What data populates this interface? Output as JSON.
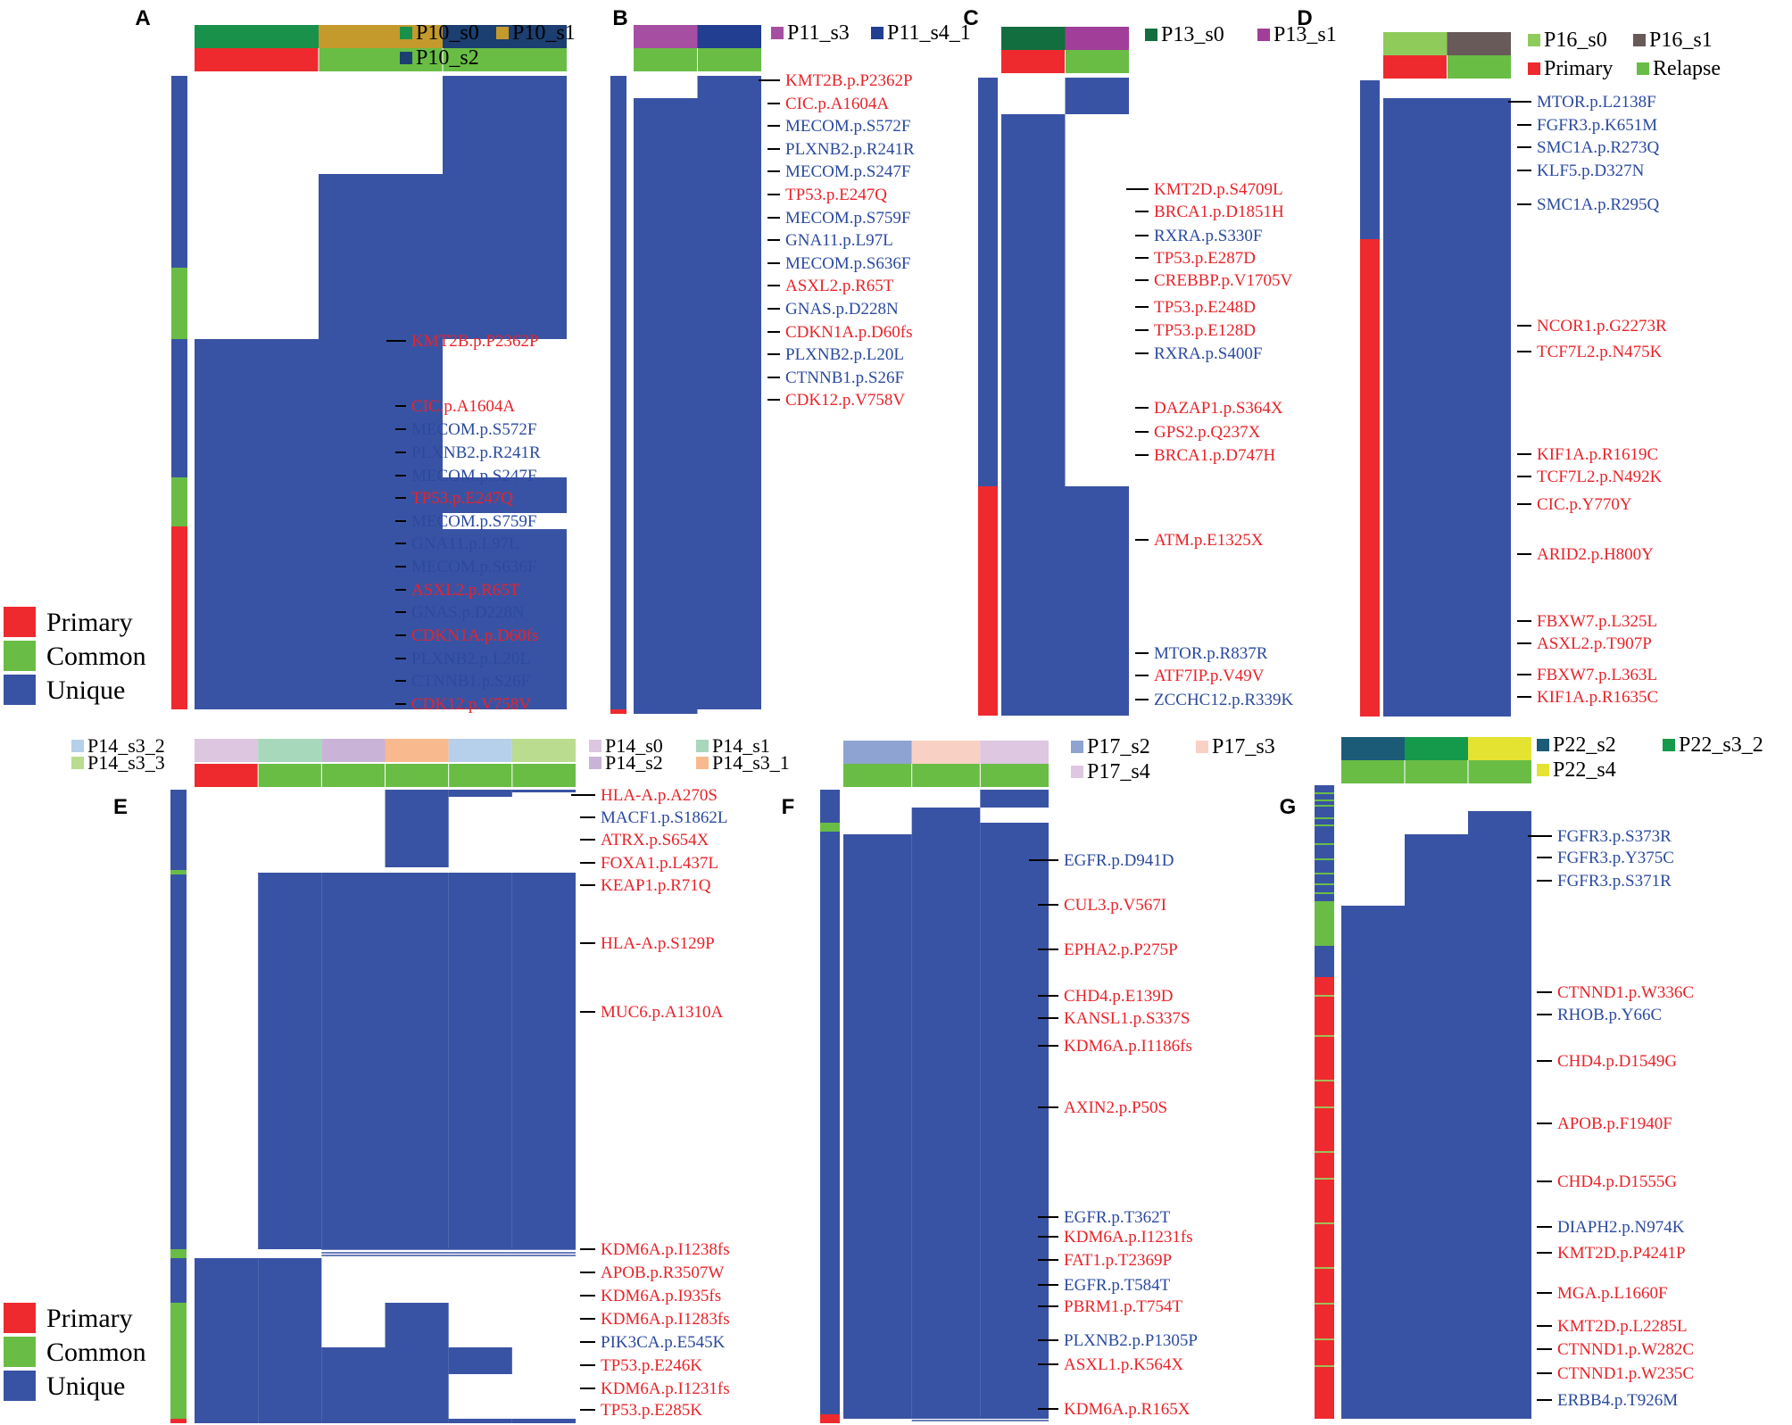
{
  "colors": {
    "unique": "#3953A4",
    "primary": "#EE2A2E",
    "common": "#69BD45",
    "gene_red": "#E8232A",
    "gene_blue": "#2B4A9E"
  },
  "legend": {
    "primary": "Primary",
    "common": "Common",
    "unique": "Unique"
  },
  "chart_data": [
    {
      "panel": "A",
      "type": "heatmap",
      "samples": [
        {
          "name": "P10_s0",
          "color": "#19914B"
        },
        {
          "name": "P10_s1",
          "color": "#C49A2C"
        },
        {
          "name": "P10_s2",
          "color": "#1B3F70"
        }
      ],
      "timepoint": [
        "primary",
        "common",
        "common"
      ],
      "mutations": [
        {
          "label": "KMT2B.p.P2362P",
          "class": "primary"
        },
        {
          "label": "CIC.p.A1604A",
          "class": "primary"
        },
        {
          "label": "MECOM.p.S572F",
          "class": "unique"
        },
        {
          "label": "PLXNB2.p.R241R",
          "class": "unique"
        },
        {
          "label": "MECOM.p.S247F",
          "class": "unique"
        },
        {
          "label": "TP53.p.E247Q",
          "class": "primary"
        },
        {
          "label": "MECOM.p.S759F",
          "class": "unique"
        },
        {
          "label": "GNA11.p.L97L",
          "class": "unique"
        },
        {
          "label": "MECOM.p.S636F",
          "class": "unique"
        },
        {
          "label": "ASXL2.p.R65T",
          "class": "primary"
        },
        {
          "label": "GNAS.p.D228N",
          "class": "unique"
        },
        {
          "label": "CDKN1A.p.D60fs",
          "class": "primary"
        },
        {
          "label": "PLXNB2.p.L20L",
          "class": "unique"
        },
        {
          "label": "CTNNB1.p.S26F",
          "class": "unique"
        },
        {
          "label": "CDK12.p.V758V",
          "class": "primary"
        }
      ]
    },
    {
      "panel": "B",
      "type": "heatmap",
      "samples": [
        {
          "name": "P11_s3",
          "color": "#A64EA2"
        },
        {
          "name": "P11_s4_1",
          "color": "#223E91"
        }
      ],
      "timepoint": [
        "common",
        "common"
      ],
      "mutations": [
        {
          "label": "KMT2B.p.P2362P",
          "class": "primary"
        },
        {
          "label": "CIC.p.A1604A",
          "class": "primary"
        },
        {
          "label": "MECOM.p.S572F",
          "class": "unique"
        },
        {
          "label": "PLXNB2.p.R241R",
          "class": "unique"
        },
        {
          "label": "MECOM.p.S247F",
          "class": "unique"
        },
        {
          "label": "TP53.p.E247Q",
          "class": "primary"
        },
        {
          "label": "MECOM.p.S759F",
          "class": "unique"
        },
        {
          "label": "GNA11.p.L97L",
          "class": "unique"
        },
        {
          "label": "MECOM.p.S636F",
          "class": "unique"
        },
        {
          "label": "ASXL2.p.R65T",
          "class": "primary"
        },
        {
          "label": "GNAS.p.D228N",
          "class": "unique"
        },
        {
          "label": "CDKN1A.p.D60fs",
          "class": "primary"
        },
        {
          "label": "PLXNB2.p.L20L",
          "class": "unique"
        },
        {
          "label": "CTNNB1.p.S26F",
          "class": "unique"
        },
        {
          "label": "CDK12.p.V758V",
          "class": "primary"
        }
      ]
    },
    {
      "panel": "C",
      "type": "heatmap",
      "samples": [
        {
          "name": "P13_s0",
          "color": "#136E3F"
        },
        {
          "name": "P13_s1",
          "color": "#A13E99"
        }
      ],
      "timepoint": [
        "primary",
        "common"
      ],
      "mutations": [
        {
          "label": "KMT2D.p.S4709L",
          "class": "primary"
        },
        {
          "label": "BRCA1.p.D1851H",
          "class": "primary"
        },
        {
          "label": "RXRA.p.S330F",
          "class": "unique"
        },
        {
          "label": "TP53.p.E287D",
          "class": "primary"
        },
        {
          "label": "CREBBP.p.V1705V",
          "class": "primary"
        },
        {
          "label": "TP53.p.E248D",
          "class": "primary"
        },
        {
          "label": "TP53.p.E128D",
          "class": "primary"
        },
        {
          "label": "RXRA.p.S400F",
          "class": "unique"
        },
        {
          "label": "DAZAP1.p.S364X",
          "class": "primary"
        },
        {
          "label": "GPS2.p.Q237X",
          "class": "primary"
        },
        {
          "label": "BRCA1.p.D747H",
          "class": "primary"
        },
        {
          "label": "ATM.p.E1325X",
          "class": "primary"
        },
        {
          "label": "MTOR.p.R837R",
          "class": "unique"
        },
        {
          "label": "ATF7IP.p.V49V",
          "class": "primary"
        },
        {
          "label": "ZCCHC12.p.R339K",
          "class": "unique"
        }
      ]
    },
    {
      "panel": "D",
      "type": "heatmap",
      "samples": [
        {
          "name": "P16_s0",
          "color": "#8FCB5B"
        },
        {
          "name": "P16_s1",
          "color": "#675A59"
        }
      ],
      "timepoint": [
        "primary",
        "common"
      ],
      "timepoint_legend": [
        "Primary",
        "Relapse"
      ],
      "mutations": [
        {
          "label": "MTOR.p.L2138F",
          "class": "unique"
        },
        {
          "label": "FGFR3.p.K651M",
          "class": "unique"
        },
        {
          "label": "SMC1A.p.R273Q",
          "class": "unique"
        },
        {
          "label": "KLF5.p.D327N",
          "class": "unique"
        },
        {
          "label": "SMC1A.p.R295Q",
          "class": "unique"
        },
        {
          "label": "NCOR1.p.G2273R",
          "class": "primary"
        },
        {
          "label": "TCF7L2.p.N475K",
          "class": "primary"
        },
        {
          "label": "KIF1A.p.R1619C",
          "class": "primary"
        },
        {
          "label": "TCF7L2.p.N492K",
          "class": "primary"
        },
        {
          "label": "CIC.p.Y770Y",
          "class": "primary"
        },
        {
          "label": "ARID2.p.H800Y",
          "class": "primary"
        },
        {
          "label": "FBXW7.p.L325L",
          "class": "primary"
        },
        {
          "label": "ASXL2.p.T907P",
          "class": "primary"
        },
        {
          "label": "FBXW7.p.L363L",
          "class": "primary"
        },
        {
          "label": "KIF1A.p.R1635C",
          "class": "primary"
        }
      ]
    },
    {
      "panel": "E",
      "type": "heatmap",
      "samples": [
        {
          "name": "P14_s0",
          "color": "#DCC6E0"
        },
        {
          "name": "P14_s1",
          "color": "#A7D8BB"
        },
        {
          "name": "P14_s2",
          "color": "#C9B4D8"
        },
        {
          "name": "P14_s3_1",
          "color": "#F9B98E"
        },
        {
          "name": "P14_s3_2",
          "color": "#B6CFEA"
        },
        {
          "name": "P14_s3_3",
          "color": "#B9DC8F"
        }
      ],
      "timepoint": [
        "primary",
        "common",
        "common",
        "common",
        "common",
        "common"
      ],
      "mutations": [
        {
          "label": "HLA-A.p.A270S",
          "class": "primary"
        },
        {
          "label": "MACF1.p.S1862L",
          "class": "unique"
        },
        {
          "label": "ATRX.p.S654X",
          "class": "primary"
        },
        {
          "label": "FOXA1.p.L437L",
          "class": "primary"
        },
        {
          "label": "KEAP1.p.R71Q",
          "class": "primary"
        },
        {
          "label": "HLA-A.p.S129P",
          "class": "primary"
        },
        {
          "label": "MUC6.p.A1310A",
          "class": "primary"
        },
        {
          "label": "KDM6A.p.I1238fs",
          "class": "primary"
        },
        {
          "label": "APOB.p.R3507W",
          "class": "primary"
        },
        {
          "label": "KDM6A.p.I935fs",
          "class": "primary"
        },
        {
          "label": "KDM6A.p.I1283fs",
          "class": "primary"
        },
        {
          "label": "PIK3CA.p.E545K",
          "class": "unique"
        },
        {
          "label": "TP53.p.E246K",
          "class": "primary"
        },
        {
          "label": "KDM6A.p.I1231fs",
          "class": "primary"
        },
        {
          "label": "TP53.p.E285K",
          "class": "primary"
        }
      ]
    },
    {
      "panel": "F",
      "type": "heatmap",
      "samples": [
        {
          "name": "P17_s2",
          "color": "#8FA3D3"
        },
        {
          "name": "P17_s3",
          "color": "#F9D0C4"
        },
        {
          "name": "P17_s4",
          "color": "#DDC7E1"
        }
      ],
      "timepoint": [
        "common",
        "common",
        "common"
      ],
      "mutations": [
        {
          "label": "EGFR.p.D941D",
          "class": "unique"
        },
        {
          "label": "CUL3.p.V567I",
          "class": "primary"
        },
        {
          "label": "EPHA2.p.P275P",
          "class": "primary"
        },
        {
          "label": "CHD4.p.E139D",
          "class": "primary"
        },
        {
          "label": "KANSL1.p.S337S",
          "class": "primary"
        },
        {
          "label": "KDM6A.p.I1186fs",
          "class": "primary"
        },
        {
          "label": "AXIN2.p.P50S",
          "class": "primary"
        },
        {
          "label": "EGFR.p.T362T",
          "class": "unique"
        },
        {
          "label": "KDM6A.p.I1231fs",
          "class": "primary"
        },
        {
          "label": "FAT1.p.T2369P",
          "class": "primary"
        },
        {
          "label": "EGFR.p.T584T",
          "class": "unique"
        },
        {
          "label": "PBRM1.p.T754T",
          "class": "primary"
        },
        {
          "label": "PLXNB2.p.P1305P",
          "class": "unique"
        },
        {
          "label": "ASXL1.p.K564X",
          "class": "primary"
        },
        {
          "label": "KDM6A.p.R165X",
          "class": "primary"
        }
      ]
    },
    {
      "panel": "G",
      "type": "heatmap",
      "samples": [
        {
          "name": "P22_s2",
          "color": "#1B5B77"
        },
        {
          "name": "P22_s3_2",
          "color": "#15994B"
        },
        {
          "name": "P22_s4",
          "color": "#E5E331"
        }
      ],
      "timepoint": [
        "common",
        "common",
        "common"
      ],
      "mutations": [
        {
          "label": "FGFR3.p.S373R",
          "class": "unique"
        },
        {
          "label": "FGFR3.p.Y375C",
          "class": "unique"
        },
        {
          "label": "FGFR3.p.S371R",
          "class": "unique"
        },
        {
          "label": "CTNND1.p.W336C",
          "class": "primary"
        },
        {
          "label": "RHOB.p.Y66C",
          "class": "unique"
        },
        {
          "label": "CHD4.p.D1549G",
          "class": "primary"
        },
        {
          "label": "APOB.p.F1940F",
          "class": "primary"
        },
        {
          "label": "CHD4.p.D1555G",
          "class": "primary"
        },
        {
          "label": "DIAPH2.p.N974K",
          "class": "unique"
        },
        {
          "label": "KMT2D.p.P4241P",
          "class": "primary"
        },
        {
          "label": "MGA.p.L1660F",
          "class": "primary"
        },
        {
          "label": "KMT2D.p.L2285L",
          "class": "primary"
        },
        {
          "label": "CTNND1.p.W282C",
          "class": "primary"
        },
        {
          "label": "CTNND1.p.W235C",
          "class": "primary"
        },
        {
          "label": "ERBB4.p.T926M",
          "class": "unique"
        }
      ]
    }
  ]
}
